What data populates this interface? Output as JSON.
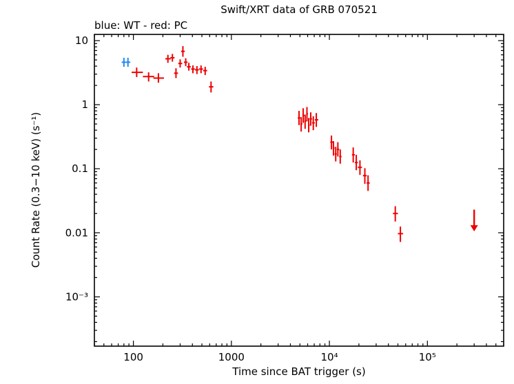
{
  "chart_data": {
    "type": "scatter",
    "title": "Swift/XRT data of GRB 070521",
    "subtitle": "blue: WT - red: PC",
    "xlabel": "Time since BAT trigger (s)",
    "ylabel": "Count Rate (0.3−10 keV) (s⁻¹)",
    "xscale": "log",
    "yscale": "log",
    "xlim": [
      40,
      600000
    ],
    "ylim": [
      0.00017,
      12.5
    ],
    "grid": false,
    "x_ticks": [
      {
        "value": 100,
        "label": "100"
      },
      {
        "value": 1000,
        "label": "1000"
      },
      {
        "value": 10000,
        "label": "10⁴"
      },
      {
        "value": 100000,
        "label": "10⁵"
      }
    ],
    "y_ticks": [
      {
        "value": 10,
        "label": "10"
      },
      {
        "value": 1,
        "label": "1"
      },
      {
        "value": 0.1,
        "label": "0.1"
      },
      {
        "value": 0.01,
        "label": "0.01"
      },
      {
        "value": 0.001,
        "label": "10⁻³"
      }
    ],
    "series": [
      {
        "name": "WT",
        "color": "#2288ee",
        "points": [
          [
            80,
            76,
            84,
            4.6,
            3.9,
            5.4
          ],
          [
            88,
            84,
            93,
            4.6,
            3.9,
            5.4
          ]
        ]
      },
      {
        "name": "PC",
        "color": "#ee0000",
        "points": [
          [
            108,
            96,
            125,
            3.2,
            2.7,
            3.8
          ],
          [
            143,
            125,
            163,
            2.75,
            2.3,
            3.2
          ],
          [
            180,
            160,
            205,
            2.6,
            2.2,
            3.1
          ],
          [
            225,
            212,
            240,
            5.2,
            4.5,
            6.0
          ],
          [
            250,
            238,
            263,
            5.4,
            4.7,
            6.2
          ],
          [
            272,
            260,
            285,
            3.1,
            2.6,
            3.7
          ],
          [
            300,
            287,
            315,
            4.4,
            3.8,
            5.1
          ],
          [
            320,
            307,
            334,
            6.8,
            5.6,
            8.2
          ],
          [
            342,
            328,
            357,
            4.6,
            4.0,
            5.3
          ],
          [
            368,
            352,
            385,
            3.9,
            3.4,
            4.5
          ],
          [
            405,
            388,
            424,
            3.6,
            3.1,
            4.1
          ],
          [
            445,
            425,
            466,
            3.5,
            3.0,
            4.0
          ],
          [
            490,
            468,
            513,
            3.6,
            3.1,
            4.1
          ],
          [
            540,
            515,
            566,
            3.4,
            2.9,
            3.9
          ],
          [
            620,
            590,
            655,
            1.9,
            1.55,
            2.3
          ],
          [
            4900,
            4750,
            5050,
            0.62,
            0.48,
            0.8
          ],
          [
            5150,
            5050,
            5300,
            0.5,
            0.38,
            0.64
          ],
          [
            5400,
            5300,
            5550,
            0.68,
            0.52,
            0.88
          ],
          [
            5650,
            5550,
            5800,
            0.55,
            0.42,
            0.7
          ],
          [
            5900,
            5800,
            6050,
            0.72,
            0.55,
            0.92
          ],
          [
            6150,
            6050,
            6300,
            0.48,
            0.37,
            0.62
          ],
          [
            6450,
            6300,
            6650,
            0.6,
            0.47,
            0.76
          ],
          [
            6850,
            6650,
            7100,
            0.52,
            0.4,
            0.66
          ],
          [
            7350,
            7100,
            7700,
            0.58,
            0.45,
            0.74
          ],
          [
            10500,
            10200,
            10900,
            0.26,
            0.2,
            0.33
          ],
          [
            11000,
            10900,
            11300,
            0.21,
            0.16,
            0.27
          ],
          [
            11600,
            11300,
            11900,
            0.17,
            0.13,
            0.22
          ],
          [
            12200,
            11900,
            12600,
            0.2,
            0.155,
            0.26
          ],
          [
            12900,
            12600,
            13300,
            0.155,
            0.12,
            0.2
          ],
          [
            17500,
            17000,
            18200,
            0.165,
            0.125,
            0.215
          ],
          [
            18800,
            18200,
            19500,
            0.125,
            0.095,
            0.165
          ],
          [
            20500,
            19500,
            21500,
            0.105,
            0.08,
            0.135
          ],
          [
            23000,
            22000,
            24000,
            0.078,
            0.058,
            0.102
          ],
          [
            24800,
            24000,
            25800,
            0.06,
            0.045,
            0.079
          ],
          [
            47000,
            44500,
            50000,
            0.02,
            0.015,
            0.026
          ],
          [
            53000,
            50000,
            56500,
            0.0097,
            0.0072,
            0.0125
          ]
        ]
      }
    ],
    "upper_limits": [
      {
        "t": 300000,
        "rate": 0.0105,
        "bar_top": 0.023,
        "color": "#ee0000"
      }
    ]
  }
}
